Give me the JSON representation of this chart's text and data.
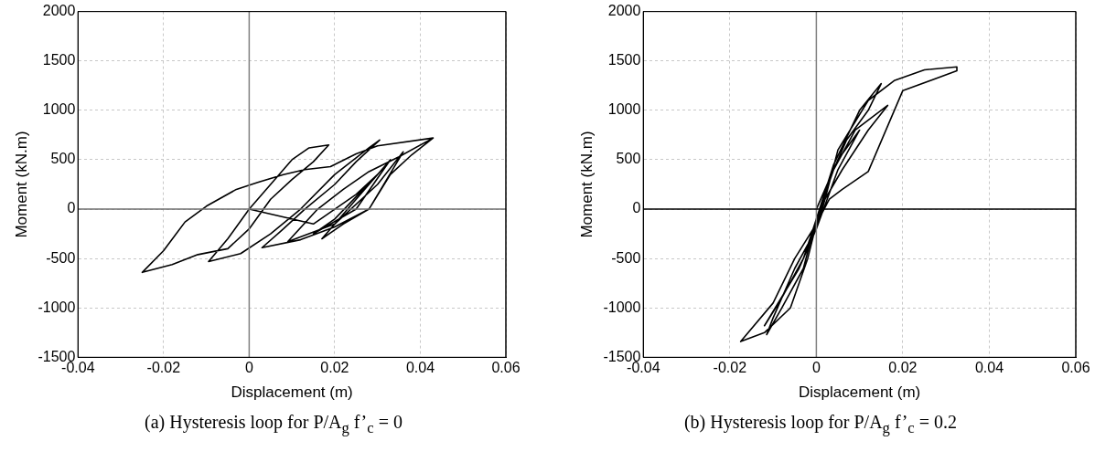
{
  "chart_data": [
    {
      "type": "line",
      "xlabel": "Displacement (m)",
      "ylabel": "Moment (kN.m)",
      "annotations": [
        "(a) Hysteresis loop for P/A$_{g}$ f’$_{c}$ = 0"
      ],
      "x": [
        0,
        0.015,
        0.025,
        0.03,
        0.02,
        0.015,
        0.025,
        0.033,
        0.025,
        0.017,
        0.022,
        0.028,
        0.036,
        0.03,
        0.02,
        0.009,
        0.016,
        0.022,
        0.028,
        0.035,
        0.043,
        0.038,
        0.033,
        0.028,
        0.02,
        0.012,
        0.003,
        0.008,
        0.013,
        0.02,
        0.025,
        0.0305,
        0.028,
        0.02,
        0.012,
        0.005,
        -0.002,
        -0.0095,
        -0.005,
        0,
        0.005,
        0.01,
        0.014,
        0.0186,
        0.015,
        0.01,
        0.005,
        0,
        -0.005,
        -0.012,
        -0.018,
        -0.025,
        -0.02,
        -0.015,
        -0.01,
        -0.003,
        0.002,
        0.008,
        0.013,
        0.019,
        0.025,
        0.03,
        0.043
      ],
      "values": [
        0,
        -150,
        150,
        350,
        -100,
        -250,
        0,
        500,
        100,
        -300,
        -150,
        0,
        580,
        250,
        -150,
        -330,
        0,
        200,
        380,
        530,
        720,
        550,
        350,
        0,
        -180,
        -310,
        -390,
        -200,
        0,
        250,
        480,
        700,
        620,
        350,
        0,
        -250,
        -450,
        -530,
        -300,
        0,
        250,
        500,
        620,
        650,
        480,
        300,
        100,
        -200,
        -400,
        -460,
        -560,
        -640,
        -420,
        -130,
        30,
        200,
        270,
        350,
        400,
        430,
        560,
        640,
        720
      ],
      "color": "#000000",
      "xlim": [
        -0.04,
        0.06
      ],
      "xticks": [
        -0.04,
        -0.02,
        0,
        0.02,
        0.04,
        0.06
      ],
      "ylim": [
        -1500,
        2000
      ],
      "yticks": [
        -1500,
        -1000,
        -500,
        0,
        500,
        1000,
        1500,
        2000
      ],
      "grid": true,
      "legend": false,
      "marker": "none",
      "line_style": "solid",
      "ref_lines": [
        {
          "axis": "x",
          "value": 0,
          "color": "#808080"
        },
        {
          "axis": "y",
          "value": 0,
          "color": "#6e6e6e"
        }
      ]
    },
    {
      "type": "line",
      "xlabel": "Displacement (m)",
      "ylabel": "Moment (kN.m)",
      "annotations": [
        "(b) Hysteresis loop for P/A$_{g}$ f’$_{c}$ = 0.2"
      ],
      "x": [
        0,
        0.005,
        0.01,
        0.005,
        0,
        -0.005,
        -0.01,
        -0.0115,
        -0.008,
        -0.003,
        0,
        0.004,
        0.009,
        0.0165,
        0.012,
        0.006,
        0.002,
        0,
        -0.004,
        -0.012,
        -0.008,
        -0.003,
        0,
        0.004,
        0.01,
        0.015,
        0.012,
        0.007,
        0.003,
        0,
        -0.005,
        -0.01,
        -0.0175,
        -0.012,
        -0.006,
        -0.002,
        0,
        0.003,
        0.006,
        0.012,
        0.02,
        0.0325,
        0.0325,
        0.025,
        0.018,
        0.012,
        0.005,
        0.002,
        0
      ],
      "values": [
        0,
        500,
        800,
        400,
        -200,
        -600,
        -1100,
        -1270,
        -1000,
        -600,
        -100,
        400,
        800,
        1050,
        800,
        400,
        100,
        -200,
        -600,
        -1180,
        -900,
        -500,
        -100,
        450,
        1000,
        1270,
        1000,
        700,
        300,
        -150,
        -500,
        -950,
        -1340,
        -1250,
        -1000,
        -500,
        -150,
        100,
        200,
        380,
        1200,
        1400,
        1440,
        1410,
        1300,
        1100,
        600,
        100,
        -200
      ],
      "color": "#000000",
      "xlim": [
        -0.04,
        0.06
      ],
      "xticks": [
        -0.04,
        -0.02,
        0,
        0.02,
        0.04,
        0.06
      ],
      "ylim": [
        -1500,
        2000
      ],
      "yticks": [
        -1500,
        -1000,
        -500,
        0,
        500,
        1000,
        1500,
        2000
      ],
      "grid": true,
      "legend": false,
      "marker": "none",
      "line_style": "solid",
      "ref_lines": [
        {
          "axis": "x",
          "value": 0,
          "color": "#808080"
        },
        {
          "axis": "y",
          "value": 0,
          "color": "#000000"
        }
      ]
    }
  ]
}
